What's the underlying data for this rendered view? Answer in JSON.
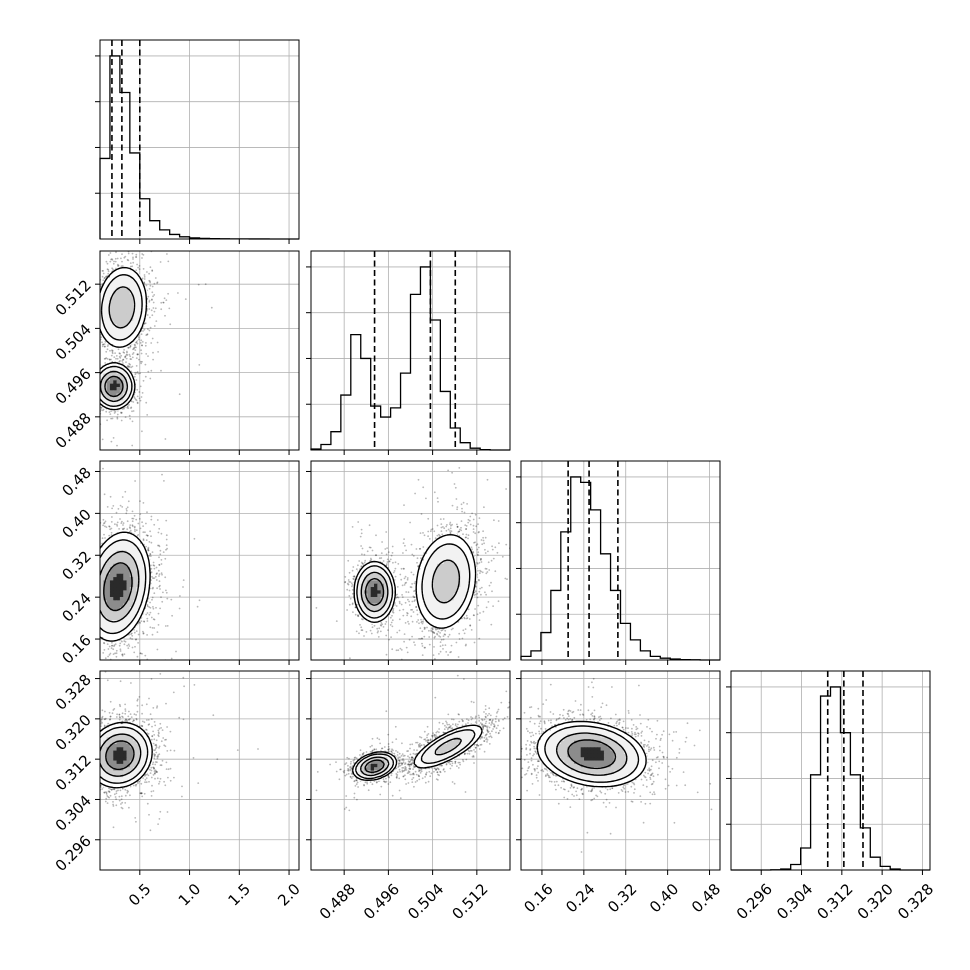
{
  "chart_data": {
    "type": "corner",
    "grid": true,
    "parameters": [
      {
        "range": [
          0.1,
          2.1
        ],
        "ticks": [
          0.5,
          1.0,
          1.5,
          2.0
        ],
        "tick_labels": [
          "0.5",
          "1.0",
          "1.5",
          "2.0"
        ],
        "quantiles": [
          0.22,
          0.32,
          0.5
        ],
        "histogram": [
          0.44,
          1.0,
          0.8,
          0.47,
          0.22,
          0.1,
          0.05,
          0.025,
          0.012,
          0.006,
          0.003,
          0.002,
          0.001,
          0.0008,
          0.0006,
          0.0004,
          0.0003,
          0.0002,
          0.0002,
          0.0001
        ]
      },
      {
        "range": [
          0.482,
          0.518
        ],
        "ticks": [
          0.488,
          0.496,
          0.504,
          0.512
        ],
        "tick_labels": [
          "0.488",
          "0.496",
          "0.504",
          "0.512"
        ],
        "quantiles": [
          0.4935,
          0.5036,
          0.5081
        ],
        "histogram": [
          0.005,
          0.03,
          0.1,
          0.3,
          0.63,
          0.5,
          0.24,
          0.18,
          0.23,
          0.42,
          0.85,
          1.0,
          0.71,
          0.32,
          0.12,
          0.04,
          0.01,
          0.002,
          0.0,
          0.0
        ]
      },
      {
        "range": [
          0.12,
          0.5
        ],
        "ticks": [
          0.16,
          0.24,
          0.32,
          0.4,
          0.48
        ],
        "tick_labels": [
          "0.16",
          "0.24",
          "0.32",
          "0.40",
          "0.48"
        ],
        "quantiles": [
          0.21,
          0.25,
          0.305
        ],
        "histogram": [
          0.02,
          0.05,
          0.15,
          0.38,
          0.7,
          1.0,
          0.97,
          0.82,
          0.58,
          0.38,
          0.2,
          0.11,
          0.05,
          0.02,
          0.01,
          0.005,
          0.002,
          0.001,
          0.0,
          0.0
        ]
      },
      {
        "range": [
          0.29,
          0.3295
        ],
        "ticks": [
          0.296,
          0.304,
          0.312,
          0.32,
          0.328
        ],
        "tick_labels": [
          "0.296",
          "0.304",
          "0.312",
          "0.320",
          "0.328"
        ],
        "quantiles": [
          0.3092,
          0.3124,
          0.3162
        ],
        "histogram": [
          0.0,
          0.0,
          0.0,
          0.0,
          0.001,
          0.005,
          0.03,
          0.12,
          0.52,
          0.95,
          1.0,
          0.75,
          0.52,
          0.23,
          0.07,
          0.02,
          0.005,
          0.0,
          0.0,
          0.0
        ]
      }
    ],
    "pairs": [
      {
        "row": 1,
        "col": 0,
        "modes": [
          {
            "x": 0.32,
            "y": 0.5078,
            "sx": 0.12,
            "sy": 0.0035,
            "rho": 0.1,
            "w": 0.6
          },
          {
            "x": 0.24,
            "y": 0.4935,
            "sx": 0.09,
            "sy": 0.0018,
            "rho": 0.0,
            "w": 0.4
          }
        ]
      },
      {
        "row": 2,
        "col": 0,
        "modes": [
          {
            "x": 0.28,
            "y": 0.26,
            "sx": 0.14,
            "sy": 0.045,
            "rho": 0.2,
            "w": 1.0
          }
        ]
      },
      {
        "row": 2,
        "col": 1,
        "modes": [
          {
            "x": 0.4935,
            "y": 0.25,
            "sx": 0.0016,
            "sy": 0.025,
            "rho": 0.0,
            "w": 0.4
          },
          {
            "x": 0.5064,
            "y": 0.27,
            "sx": 0.0027,
            "sy": 0.045,
            "rho": 0.15,
            "w": 0.6
          }
        ]
      },
      {
        "row": 3,
        "col": 0,
        "modes": [
          {
            "x": 0.3,
            "y": 0.3128,
            "sx": 0.14,
            "sy": 0.0028,
            "rho": 0.1,
            "w": 1.0
          }
        ]
      },
      {
        "row": 3,
        "col": 1,
        "modes": [
          {
            "x": 0.4935,
            "y": 0.3106,
            "sx": 0.0017,
            "sy": 0.0012,
            "rho": 0.3,
            "w": 0.4
          },
          {
            "x": 0.5068,
            "y": 0.3145,
            "sx": 0.0032,
            "sy": 0.0022,
            "rho": 0.75,
            "w": 0.6
          }
        ]
      },
      {
        "row": 3,
        "col": 2,
        "modes": [
          {
            "x": 0.255,
            "y": 0.313,
            "sx": 0.045,
            "sy": 0.0028,
            "rho": -0.2,
            "w": 1.0
          }
        ]
      }
    ]
  }
}
